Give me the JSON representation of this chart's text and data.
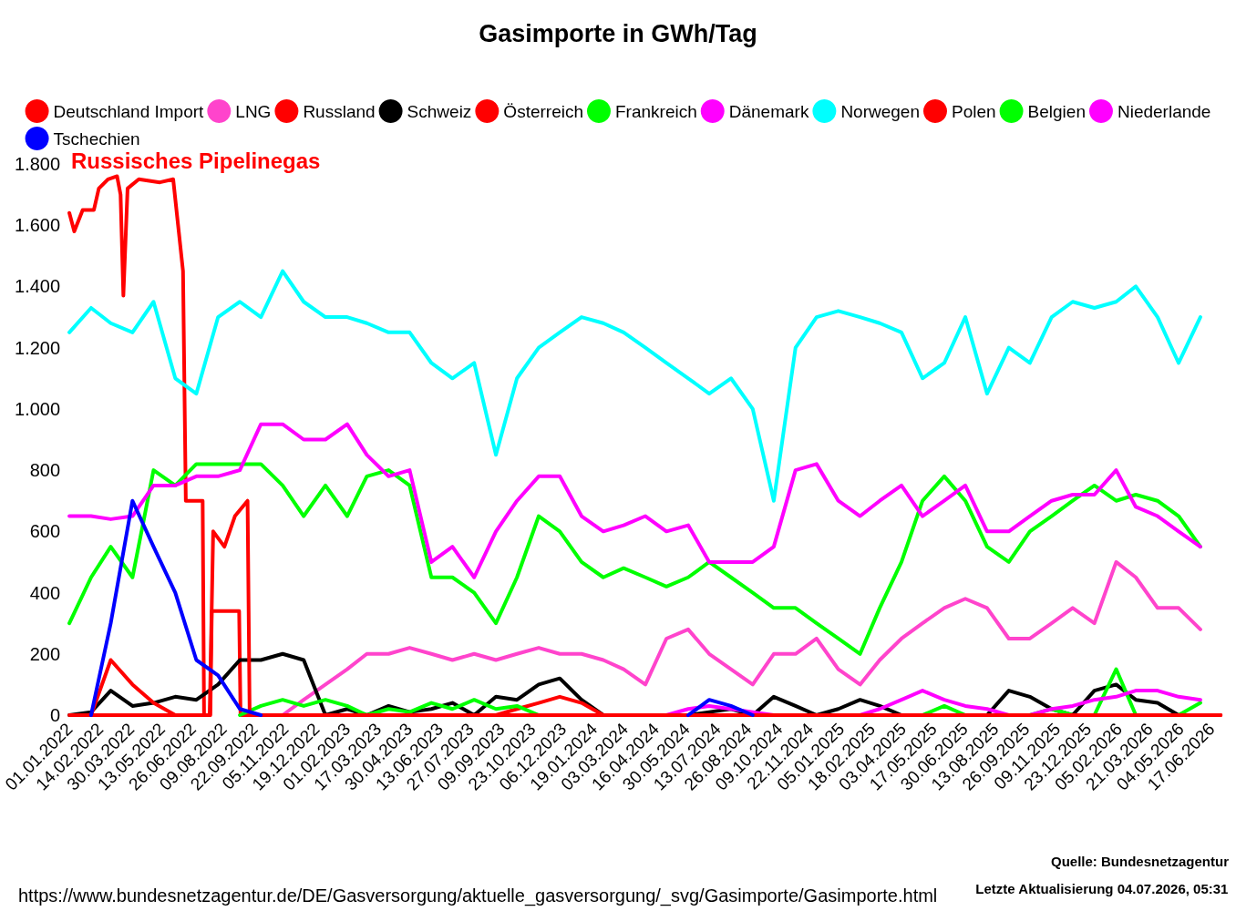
{
  "chart_data": {
    "type": "line",
    "title": "Gasimporte in GWh/Tag",
    "x": [
      "2022-01",
      "2022-02",
      "2022-03",
      "2022-04",
      "2022-05",
      "2022-06",
      "2022-07",
      "2022-08",
      "2022-09",
      "2022-10",
      "2022-11",
      "2022-12",
      "2023-01",
      "2023-02",
      "2023-03",
      "2023-04",
      "2023-05",
      "2023-06",
      "2023-07",
      "2023-08",
      "2023-09",
      "2023-10",
      "2023-11",
      "2023-12",
      "2024-01",
      "2024-02",
      "2024-03",
      "2024-04",
      "2024-05",
      "2024-06",
      "2024-07",
      "2024-08",
      "2024-09",
      "2024-10",
      "2024-11",
      "2024-12",
      "2025-01",
      "2025-02",
      "2025-03",
      "2025-04",
      "2025-05",
      "2025-06",
      "2025-07",
      "2025-08",
      "2025-09",
      "2025-10",
      "2025-11",
      "2025-12",
      "2026-01",
      "2026-02",
      "2026-03",
      "2026-04",
      "2026-05",
      "2026-06"
    ],
    "series": [
      {
        "name": "Deutschland Import",
        "color": "#ff0000",
        "values": [
          null,
          null,
          null,
          null,
          null,
          null,
          null,
          null,
          null,
          null,
          null,
          null,
          null,
          null,
          null,
          null,
          null,
          null,
          null,
          null,
          null,
          null,
          null,
          null,
          null,
          null,
          null,
          null,
          null,
          null,
          null,
          null,
          null,
          null,
          null,
          null,
          null,
          null,
          null,
          null,
          null,
          null,
          null,
          null,
          null,
          null,
          null,
          null,
          null,
          null,
          null,
          null,
          null,
          null
        ]
      },
      {
        "name": "LNG",
        "color": "#ff44cc",
        "values": [
          null,
          null,
          null,
          null,
          null,
          null,
          null,
          null,
          null,
          null,
          0,
          50,
          100,
          150,
          200,
          200,
          220,
          200,
          180,
          200,
          180,
          200,
          220,
          200,
          200,
          180,
          150,
          100,
          250,
          280,
          200,
          150,
          100,
          200,
          200,
          250,
          150,
          100,
          180,
          250,
          300,
          350,
          380,
          350,
          250,
          250,
          300,
          350,
          300,
          500,
          450,
          350,
          350,
          280
        ]
      },
      {
        "name": "Russland",
        "color": "#ff0000",
        "x": [
          "2022-01-01",
          "2022-01-08",
          "2022-01-20",
          "2022-02-05",
          "2022-02-12",
          "2022-02-25",
          "2022-03-10",
          "2022-03-15",
          "2022-03-19",
          "2022-03-25",
          "2022-04-10",
          "2022-05-10",
          "2022-05-29",
          "2022-06-05",
          "2022-06-12",
          "2022-06-16",
          "2022-07-10",
          "2022-07-12",
          "2022-07-21",
          "2022-07-23",
          "2022-08-31",
          "2022-09-02",
          "2026-06-30"
        ],
        "values": [
          1640,
          1580,
          1650,
          1650,
          1720,
          1750,
          1760,
          1700,
          1370,
          1720,
          1750,
          1740,
          1750,
          1600,
          1450,
          700,
          700,
          0,
          0,
          340,
          340,
          0,
          0
        ]
      },
      {
        "name": "Schweiz",
        "color": "#000000",
        "values": [
          0,
          10,
          80,
          30,
          40,
          60,
          50,
          100,
          180,
          180,
          200,
          180,
          0,
          20,
          0,
          30,
          10,
          20,
          40,
          0,
          60,
          50,
          100,
          120,
          50,
          0,
          null,
          null,
          null,
          0,
          10,
          20,
          0,
          60,
          30,
          0,
          20,
          50,
          30,
          0,
          null,
          null,
          null,
          0,
          80,
          60,
          20,
          0,
          80,
          100,
          50,
          40,
          0,
          0
        ]
      },
      {
        "name": "Österreich",
        "color": "#ff0000",
        "values": [
          null,
          0,
          180,
          100,
          40,
          0,
          null,
          null,
          null,
          null,
          null,
          null,
          null,
          null,
          null,
          null,
          null,
          null,
          null,
          null,
          0,
          20,
          40,
          60,
          40,
          0,
          null,
          null,
          null,
          null,
          null,
          null,
          null,
          null,
          null,
          null,
          null,
          null,
          null,
          null,
          null,
          null,
          null,
          null,
          null,
          null,
          null,
          null,
          null,
          null,
          null,
          null,
          null,
          null
        ]
      },
      {
        "name": "Frankreich",
        "color": "#00ff00",
        "values": [
          null,
          null,
          null,
          null,
          null,
          null,
          null,
          null,
          0,
          30,
          50,
          30,
          50,
          30,
          0,
          20,
          10,
          40,
          20,
          50,
          20,
          30,
          0,
          null,
          null,
          null,
          null,
          null,
          null,
          null,
          null,
          null,
          null,
          null,
          null,
          null,
          null,
          null,
          null,
          null,
          0,
          30,
          0,
          null,
          null,
          0,
          20,
          0,
          0,
          150,
          0,
          null,
          0,
          40
        ]
      },
      {
        "name": "Dänemark",
        "color": "#ff00ff",
        "values": [
          null,
          null,
          null,
          null,
          null,
          null,
          null,
          null,
          null,
          null,
          null,
          null,
          null,
          null,
          null,
          null,
          null,
          null,
          null,
          null,
          null,
          null,
          null,
          null,
          null,
          null,
          null,
          null,
          0,
          20,
          30,
          20,
          10,
          0,
          null,
          null,
          null,
          0,
          20,
          50,
          80,
          50,
          30,
          20,
          0,
          0,
          20,
          30,
          50,
          60,
          80,
          80,
          60,
          50
        ]
      },
      {
        "name": "Norwegen",
        "color": "#00ffff",
        "values": [
          1250,
          1330,
          1280,
          1250,
          1350,
          1100,
          1050,
          1300,
          1350,
          1300,
          1450,
          1350,
          1300,
          1300,
          1280,
          1250,
          1250,
          1150,
          1100,
          1150,
          850,
          1100,
          1200,
          1250,
          1300,
          1280,
          1250,
          1200,
          1150,
          1100,
          1050,
          1100,
          1000,
          700,
          1200,
          1300,
          1320,
          1300,
          1280,
          1250,
          1100,
          1150,
          1300,
          1050,
          1200,
          1150,
          1300,
          1350,
          1330,
          1350,
          1400,
          1300,
          1150,
          1300
        ]
      },
      {
        "name": "Polen",
        "color": "#ff0000",
        "x": [
          "2022-01-01",
          "2022-07-20",
          "2022-07-25",
          "2022-08-10",
          "2022-08-25",
          "2022-09-12",
          "2022-09-15",
          "2026-06-30"
        ],
        "values": [
          0,
          0,
          600,
          550,
          650,
          700,
          0,
          0
        ]
      },
      {
        "name": "Belgien",
        "color": "#00ff00",
        "values": [
          300,
          450,
          550,
          450,
          800,
          750,
          820,
          820,
          820,
          820,
          750,
          650,
          750,
          650,
          780,
          800,
          750,
          450,
          450,
          400,
          300,
          450,
          650,
          600,
          500,
          450,
          480,
          450,
          420,
          450,
          500,
          450,
          400,
          350,
          350,
          300,
          250,
          200,
          350,
          500,
          700,
          780,
          700,
          550,
          500,
          600,
          650,
          700,
          750,
          700,
          720,
          700,
          650,
          550
        ]
      },
      {
        "name": "Niederlande",
        "color": "#ff00ff",
        "values": [
          650,
          650,
          640,
          650,
          750,
          750,
          780,
          780,
          800,
          950,
          950,
          900,
          900,
          950,
          850,
          780,
          800,
          500,
          550,
          450,
          600,
          700,
          780,
          780,
          650,
          600,
          620,
          650,
          600,
          620,
          500,
          500,
          500,
          550,
          800,
          820,
          700,
          650,
          700,
          750,
          650,
          700,
          750,
          600,
          600,
          650,
          700,
          720,
          720,
          800,
          680,
          650,
          600,
          550
        ]
      },
      {
        "name": "Tschechien",
        "color": "#0000ff",
        "values": [
          null,
          0,
          300,
          700,
          550,
          400,
          180,
          130,
          20,
          0,
          null,
          null,
          null,
          null,
          null,
          null,
          null,
          null,
          null,
          null,
          null,
          null,
          null,
          null,
          null,
          null,
          null,
          null,
          null,
          0,
          50,
          30,
          0,
          null,
          null,
          null,
          null,
          null,
          null,
          null,
          null,
          null,
          null,
          null,
          null,
          null,
          null,
          null,
          null,
          null,
          null,
          null,
          null,
          null
        ]
      }
    ],
    "xlim": [
      "2022-01-01",
      "2026-07-01"
    ],
    "xticks": [
      {
        "value": "2022-01-01",
        "label": "01.01.2022"
      },
      {
        "value": "2022-02-14",
        "label": "14.02.2022"
      },
      {
        "value": "2022-03-30",
        "label": "30.03.2022"
      },
      {
        "value": "2022-05-13",
        "label": "13.05.2022"
      },
      {
        "value": "2022-06-26",
        "label": "26.06.2022"
      },
      {
        "value": "2022-08-09",
        "label": "09.08.2022"
      },
      {
        "value": "2022-09-22",
        "label": "22.09.2022"
      },
      {
        "value": "2022-11-05",
        "label": "05.11.2022"
      },
      {
        "value": "2022-12-19",
        "label": "19.12.2022"
      },
      {
        "value": "2023-02-01",
        "label": "01.02.2023"
      },
      {
        "value": "2023-03-17",
        "label": "17.03.2023"
      },
      {
        "value": "2023-04-30",
        "label": "30.04.2023"
      },
      {
        "value": "2023-06-13",
        "label": "13.06.2023"
      },
      {
        "value": "2023-07-27",
        "label": "27.07.2023"
      },
      {
        "value": "2023-09-09",
        "label": "09.09.2023"
      },
      {
        "value": "2023-10-23",
        "label": "23.10.2023"
      },
      {
        "value": "2023-12-06",
        "label": "06.12.2023"
      },
      {
        "value": "2024-01-19",
        "label": "19.01.2024"
      },
      {
        "value": "2024-03-03",
        "label": "03.03.2024"
      },
      {
        "value": "2024-04-16",
        "label": "16.04.2024"
      },
      {
        "value": "2024-05-30",
        "label": "30.05.2024"
      },
      {
        "value": "2024-07-13",
        "label": "13.07.2024"
      },
      {
        "value": "2024-08-26",
        "label": "26.08.2024"
      },
      {
        "value": "2024-10-09",
        "label": "09.10.2024"
      },
      {
        "value": "2024-11-22",
        "label": "22.11.2024"
      },
      {
        "value": "2025-01-05",
        "label": "05.01.2025"
      },
      {
        "value": "2025-02-18",
        "label": "18.02.2025"
      },
      {
        "value": "2025-04-03",
        "label": "03.04.2025"
      },
      {
        "value": "2025-05-17",
        "label": "17.05.2025"
      },
      {
        "value": "2025-06-30",
        "label": "30.06.2025"
      },
      {
        "value": "2025-08-13",
        "label": "13.08.2025"
      },
      {
        "value": "2025-09-26",
        "label": "26.09.2025"
      },
      {
        "value": "2025-11-09",
        "label": "09.11.2025"
      },
      {
        "value": "2025-12-23",
        "label": "23.12.2025"
      },
      {
        "value": "2026-02-05",
        "label": "05.02.2026"
      },
      {
        "value": "2026-03-21",
        "label": "21.03.2026"
      },
      {
        "value": "2026-05-04",
        "label": "04.05.2026"
      },
      {
        "value": "2026-06-17",
        "label": "17.06.2026"
      }
    ],
    "ylim": [
      0,
      1800
    ],
    "yticks": [
      0,
      {
        "value": 200,
        "label": "200"
      },
      {
        "value": 400,
        "label": "400"
      },
      {
        "value": 600,
        "label": "600"
      },
      {
        "value": 800,
        "label": "800"
      },
      {
        "value": 1000,
        "label": "1.000"
      },
      {
        "value": 1200,
        "label": "1.200"
      },
      {
        "value": 1400,
        "label": "1.400"
      },
      {
        "value": 1600,
        "label": "1.600"
      },
      {
        "value": 1800,
        "label": "1.800"
      }
    ],
    "legend": "top",
    "marker": "none",
    "line_style": "solid",
    "annotations": [
      "Russisches Pipelinegas",
      "Quelle: Bundesnetzagentur",
      "Letzte Aktualisierung 04.07.2026, 05:31",
      "https://www.bundesnetzagentur.de/DE/Gasversorgung/aktuelle_gasversorgung/_svg/Gasimporte/Gasimporte.html"
    ]
  }
}
